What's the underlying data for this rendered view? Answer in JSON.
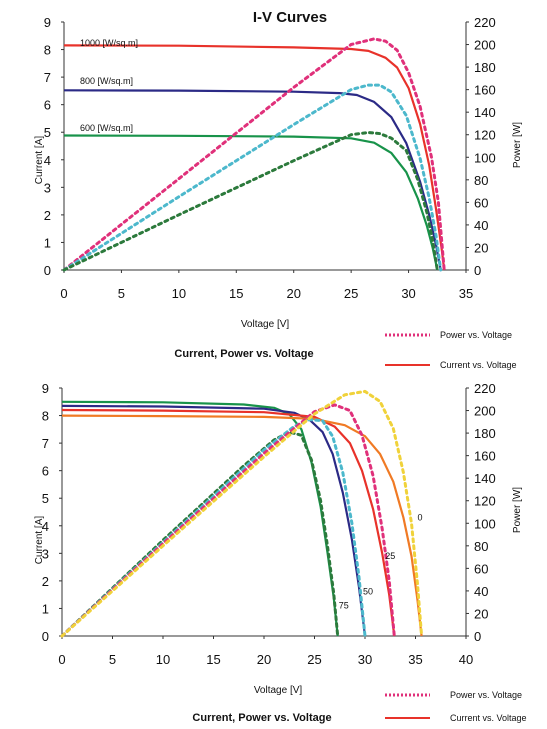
{
  "chart_data": [
    {
      "type": "line",
      "title": "I-V Curves",
      "subtitle": "Current, Power vs. Voltage",
      "xlabel": "Voltage [V]",
      "ylabel": "Current [A]",
      "ylabel_right": "Power [W]",
      "xlim": [
        0,
        35
      ],
      "ylim": [
        0,
        9
      ],
      "ylim_right": [
        0,
        220
      ],
      "xticks": [
        0,
        5,
        10,
        15,
        20,
        25,
        30,
        35
      ],
      "yticks": [
        0,
        1,
        2,
        3,
        4,
        5,
        6,
        7,
        8,
        9
      ],
      "yticks_right": [
        0,
        20,
        40,
        60,
        80,
        100,
        120,
        140,
        160,
        180,
        200,
        220
      ],
      "legend": [
        {
          "label": "Power vs. Voltage",
          "style": "dotted",
          "color": "#e0307a"
        },
        {
          "label": "Current vs. Voltage",
          "style": "solid",
          "color": "#e8322a"
        }
      ],
      "series": [
        {
          "name": "1000 [W/sq.m]",
          "kind": "current",
          "axis": "left",
          "color": "#e8322a",
          "x": [
            0,
            10,
            20,
            25,
            26.5,
            28,
            29,
            30,
            31,
            31.8,
            32.4,
            32.9,
            33.1
          ],
          "y": [
            8.15,
            8.14,
            8.08,
            8.02,
            7.95,
            7.7,
            7.35,
            6.6,
            5.3,
            3.8,
            2.2,
            0.7,
            0
          ]
        },
        {
          "name": "800 [W/sq.m]",
          "kind": "current",
          "axis": "left",
          "color": "#2b2a86",
          "x": [
            0,
            10,
            20,
            24,
            25.5,
            27,
            28.5,
            29.8,
            31,
            31.8,
            32.4,
            32.8
          ],
          "y": [
            6.52,
            6.51,
            6.47,
            6.42,
            6.35,
            6.1,
            5.55,
            4.6,
            3.2,
            2.0,
            0.9,
            0
          ]
        },
        {
          "name": "600 [W/sq.m]",
          "kind": "current",
          "axis": "left",
          "color": "#18934a",
          "x": [
            0,
            10,
            20,
            25,
            27,
            28.5,
            29.8,
            30.8,
            31.6,
            32.1,
            32.5
          ],
          "y": [
            4.88,
            4.87,
            4.84,
            4.78,
            4.62,
            4.25,
            3.55,
            2.6,
            1.6,
            0.8,
            0
          ]
        },
        {
          "name": "",
          "kind": "power",
          "axis": "right",
          "color": "#e0307a",
          "x": [
            0,
            10,
            20,
            25,
            27,
            28,
            29,
            30,
            31,
            32,
            32.6,
            33.1
          ],
          "y": [
            0,
            81,
            162,
            200,
            205,
            203,
            195,
            175,
            145,
            100,
            60,
            0
          ]
        },
        {
          "name": "",
          "kind": "power",
          "axis": "right",
          "color": "#4cb8cc",
          "x": [
            0,
            10,
            20,
            25,
            26.5,
            27.5,
            28.5,
            29.8,
            31,
            31.8,
            32.4,
            32.8
          ],
          "y": [
            0,
            65,
            129,
            160,
            164,
            164,
            158,
            137,
            99,
            64,
            30,
            0
          ]
        },
        {
          "name": "",
          "kind": "power",
          "axis": "right",
          "color": "#2c7a3c",
          "x": [
            0,
            10,
            20,
            25,
            26.5,
            27.5,
            28.5,
            29.8,
            30.8,
            31.6,
            32.1,
            32.5
          ],
          "y": [
            0,
            49,
            97,
            120,
            122,
            121,
            117,
            106,
            80,
            51,
            26,
            0
          ]
        }
      ]
    },
    {
      "type": "line",
      "subtitle": "Current, Power vs. Voltage",
      "xlabel": "Voltage [V]",
      "ylabel": "Current [A]",
      "ylabel_right": "Power [W]",
      "xlim": [
        0,
        40
      ],
      "ylim": [
        0,
        9
      ],
      "ylim_right": [
        0,
        220
      ],
      "xticks": [
        0,
        5,
        10,
        15,
        20,
        25,
        30,
        35,
        40
      ],
      "yticks": [
        0,
        1,
        2,
        3,
        4,
        5,
        6,
        7,
        8,
        9
      ],
      "yticks_right": [
        0,
        20,
        40,
        60,
        80,
        100,
        120,
        140,
        160,
        180,
        200,
        220
      ],
      "legend": [
        {
          "label": "Power vs. Voltage",
          "style": "dotted",
          "color": "#e0307a"
        },
        {
          "label": "Current vs. Voltage",
          "style": "solid",
          "color": "#e8322a"
        }
      ],
      "annotations": [
        {
          "text": "0",
          "x": 35.2,
          "y": 4.2
        },
        {
          "text": "25",
          "x": 32.0,
          "y": 2.8
        },
        {
          "text": "50",
          "x": 29.8,
          "y": 1.5
        },
        {
          "text": "75",
          "x": 27.4,
          "y": 1.0
        }
      ],
      "series": [
        {
          "name": "75",
          "kind": "current",
          "axis": "left",
          "color": "#18934a",
          "x": [
            0,
            10,
            18,
            21,
            22.5,
            23.7,
            24.7,
            25.6,
            26.3,
            26.9,
            27.3
          ],
          "y": [
            8.5,
            8.48,
            8.4,
            8.28,
            8.05,
            7.5,
            6.3,
            4.7,
            3.0,
            1.4,
            0
          ]
        },
        {
          "name": "50",
          "kind": "current",
          "axis": "left",
          "color": "#2b2a86",
          "x": [
            0,
            10,
            20,
            23,
            24.5,
            25.8,
            26.8,
            27.8,
            28.7,
            29.4,
            30.0
          ],
          "y": [
            8.35,
            8.33,
            8.25,
            8.1,
            7.85,
            7.4,
            6.6,
            5.2,
            3.5,
            1.8,
            0
          ]
        },
        {
          "name": "25",
          "kind": "current",
          "axis": "left",
          "color": "#e8322a",
          "x": [
            0,
            10,
            20,
            25,
            27,
            28.5,
            29.7,
            30.8,
            31.7,
            32.4,
            32.9
          ],
          "y": [
            8.2,
            8.18,
            8.12,
            7.95,
            7.6,
            7.0,
            6.0,
            4.6,
            3.0,
            1.5,
            0
          ]
        },
        {
          "name": "0",
          "kind": "current",
          "axis": "left",
          "color": "#f07a24",
          "x": [
            0,
            10,
            20,
            25,
            28,
            30,
            31.5,
            32.8,
            33.8,
            34.6,
            35.2,
            35.6
          ],
          "y": [
            8.0,
            7.98,
            7.95,
            7.88,
            7.65,
            7.25,
            6.6,
            5.6,
            4.3,
            2.9,
            1.3,
            0
          ]
        },
        {
          "name": "",
          "kind": "power",
          "axis": "right",
          "color": "#2c7a3c",
          "x": [
            0,
            10,
            18,
            21,
            22.5,
            23.7,
            24.7,
            25.6,
            26.3,
            26.9,
            27.3
          ],
          "y": [
            0,
            85,
            151,
            174,
            181,
            178,
            156,
            120,
            79,
            38,
            0
          ]
        },
        {
          "name": "",
          "kind": "power",
          "axis": "right",
          "color": "#4cb8cc",
          "x": [
            0,
            10,
            20,
            23,
            24.5,
            25.8,
            26.8,
            27.8,
            28.7,
            29.4,
            30.0
          ],
          "y": [
            0,
            83,
            165,
            186,
            192,
            191,
            177,
            145,
            100,
            53,
            0
          ]
        },
        {
          "name": "",
          "kind": "power",
          "axis": "right",
          "color": "#e0307a",
          "x": [
            0,
            10,
            20,
            25,
            27,
            28.5,
            29.7,
            30.8,
            31.7,
            32.4,
            32.9
          ],
          "y": [
            0,
            82,
            162,
            199,
            205,
            200,
            178,
            142,
            95,
            49,
            0
          ]
        },
        {
          "name": "",
          "kind": "power",
          "axis": "right",
          "color": "#f0d23a",
          "x": [
            0,
            10,
            20,
            25,
            28,
            30,
            31.5,
            32.8,
            33.8,
            34.6,
            35.2,
            35.6
          ],
          "y": [
            0,
            80,
            159,
            197,
            214,
            217,
            208,
            184,
            145,
            100,
            46,
            0
          ]
        }
      ]
    }
  ],
  "annotation_text": {
    "top": [
      "1000 [W/sq.m]",
      "800 [W/sq.m]",
      "600 [W/sq.m]"
    ]
  }
}
